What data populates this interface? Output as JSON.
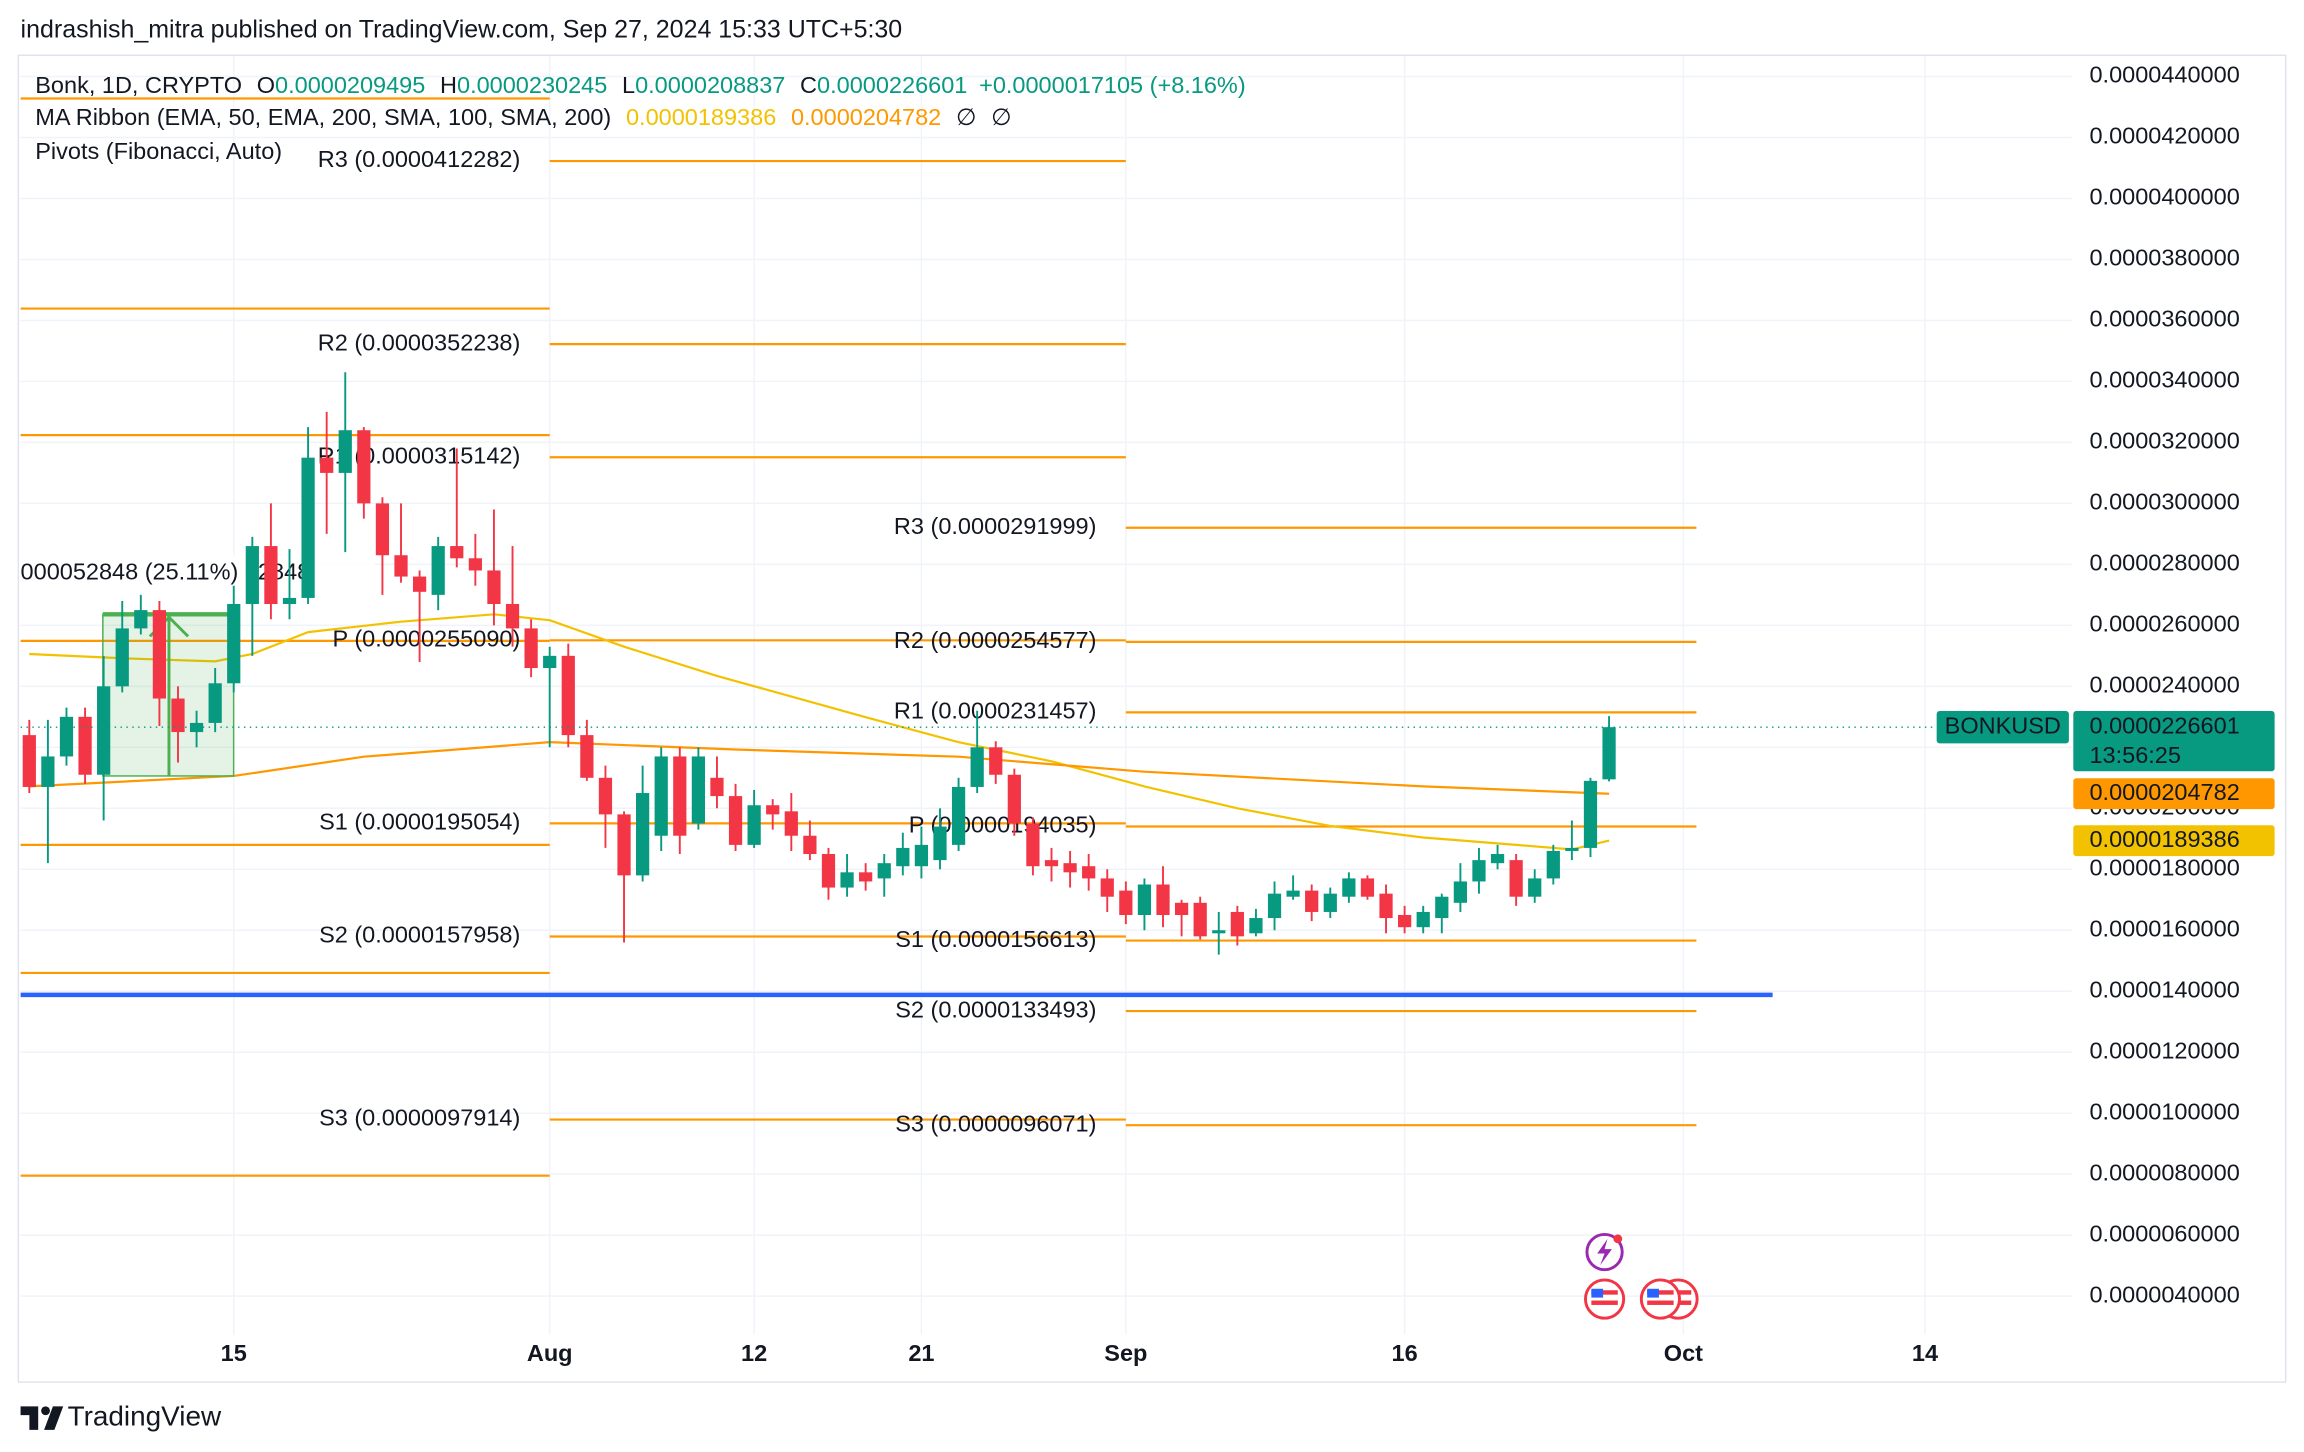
{
  "header": {
    "byline": "indrashish_mitra published on TradingView.com, Sep 27, 2024 15:33 UTC+5:30",
    "brand": "TradingView"
  },
  "chart_data": {
    "type": "candlestick",
    "symbol": "Bonk, 1D, CRYPTO",
    "ohlc_letters": [
      "O",
      "H",
      "L",
      "C"
    ],
    "change": "+0.0000017105 (+8.16%)",
    "ticker": "BONKUSD",
    "countdown": "13:56:25",
    "up_color": "#089981",
    "down_color": "#f23645",
    "open": [
      2.24e-05,
      2.07e-05,
      2.17e-05,
      2.3e-05,
      2.11e-05,
      2.4e-05,
      2.59e-05,
      2.65e-05,
      2.36e-05,
      2.25e-05,
      2.28e-05,
      2.41e-05,
      2.67e-05,
      2.86e-05,
      2.67e-05,
      2.69e-05,
      3.15e-05,
      3.1e-05,
      3.24e-05,
      3e-05,
      2.83e-05,
      2.76e-05,
      2.7e-05,
      2.86e-05,
      2.82e-05,
      2.78e-05,
      2.67e-05,
      2.59e-05,
      2.46e-05,
      2.5e-05,
      2.24e-05,
      2.1e-05,
      1.98e-05,
      1.78e-05,
      1.91e-05,
      2.17e-05,
      1.95e-05,
      2.1e-05,
      2.04e-05,
      1.88e-05,
      2.01e-05,
      1.99e-05,
      1.91e-05,
      1.85e-05,
      1.74e-05,
      1.79e-05,
      1.77e-05,
      1.81e-05,
      1.81e-05,
      1.83e-05,
      1.88e-05,
      2.07e-05,
      2.2e-05,
      2.11e-05,
      1.95e-05,
      1.83e-05,
      1.82e-05,
      1.81e-05,
      1.77e-05,
      1.73e-05,
      1.65e-05,
      1.75e-05,
      1.69e-05,
      1.69e-05,
      1.59e-05,
      1.66e-05,
      1.59e-05,
      1.64e-05,
      1.71e-05,
      1.73e-05,
      1.66e-05,
      1.71e-05,
      1.77e-05,
      1.72e-05,
      1.65e-05,
      1.61e-05,
      1.64e-05,
      1.69e-05,
      1.76e-05,
      1.82e-05,
      1.83e-05,
      1.71e-05,
      1.77e-05,
      1.86e-05,
      1.87e-05,
      2.09495e-05
    ],
    "high": [
      2.29e-05,
      2.29e-05,
      2.33e-05,
      2.33e-05,
      2.5e-05,
      2.68e-05,
      2.7e-05,
      2.68e-05,
      2.4e-05,
      2.32e-05,
      2.46e-05,
      2.73e-05,
      2.89e-05,
      3e-05,
      2.85e-05,
      3.25e-05,
      3.3e-05,
      3.43e-05,
      3.25e-05,
      3.02e-05,
      3e-05,
      2.78e-05,
      2.89e-05,
      3.18e-05,
      2.9e-05,
      2.98e-05,
      2.86e-05,
      2.62e-05,
      2.53e-05,
      2.54e-05,
      2.29e-05,
      2.14e-05,
      1.99e-05,
      2.14e-05,
      2.2e-05,
      2.2e-05,
      2.2e-05,
      2.17e-05,
      2.08e-05,
      2.06e-05,
      2.03e-05,
      2.05e-05,
      1.96e-05,
      1.87e-05,
      1.85e-05,
      1.82e-05,
      1.85e-05,
      1.92e-05,
      1.94e-05,
      2e-05,
      2.1e-05,
      2.32e-05,
      2.22e-05,
      2.13e-05,
      1.97e-05,
      1.87e-05,
      1.86e-05,
      1.85e-05,
      1.8e-05,
      1.76e-05,
      1.77e-05,
      1.81e-05,
      1.7e-05,
      1.71e-05,
      1.66e-05,
      1.68e-05,
      1.67e-05,
      1.76e-05,
      1.78e-05,
      1.75e-05,
      1.74e-05,
      1.79e-05,
      1.78e-05,
      1.75e-05,
      1.68e-05,
      1.68e-05,
      1.72e-05,
      1.82e-05,
      1.87e-05,
      1.88e-05,
      1.85e-05,
      1.8e-05,
      1.88e-05,
      1.96e-05,
      2.1e-05,
      2.30245e-05
    ],
    "low": [
      2.05e-05,
      1.82e-05,
      2.14e-05,
      2.08e-05,
      1.96e-05,
      2.38e-05,
      2.57e-05,
      2.27e-05,
      2.15e-05,
      2.2e-05,
      2.25e-05,
      2.38e-05,
      2.5e-05,
      2.62e-05,
      2.62e-05,
      2.67e-05,
      2.9e-05,
      2.84e-05,
      2.95e-05,
      2.7e-05,
      2.74e-05,
      2.48e-05,
      2.65e-05,
      2.79e-05,
      2.73e-05,
      2.6e-05,
      2.53e-05,
      2.43e-05,
      2.2e-05,
      2.2e-05,
      2.09e-05,
      1.87e-05,
      1.56e-05,
      1.76e-05,
      1.86e-05,
      1.85e-05,
      1.93e-05,
      2e-05,
      1.86e-05,
      1.87e-05,
      1.93e-05,
      1.86e-05,
      1.83e-05,
      1.7e-05,
      1.71e-05,
      1.73e-05,
      1.71e-05,
      1.78e-05,
      1.77e-05,
      1.8e-05,
      1.86e-05,
      2.05e-05,
      2.08e-05,
      1.91e-05,
      1.78e-05,
      1.76e-05,
      1.74e-05,
      1.73e-05,
      1.66e-05,
      1.62e-05,
      1.6e-05,
      1.61e-05,
      1.58e-05,
      1.57e-05,
      1.52e-05,
      1.55e-05,
      1.58e-05,
      1.6e-05,
      1.7e-05,
      1.63e-05,
      1.64e-05,
      1.69e-05,
      1.7e-05,
      1.59e-05,
      1.59e-05,
      1.59e-05,
      1.59e-05,
      1.66e-05,
      1.72e-05,
      1.8e-05,
      1.68e-05,
      1.69e-05,
      1.75e-05,
      1.83e-05,
      1.84e-05,
      2.08837e-05
    ],
    "close": [
      2.07e-05,
      2.17e-05,
      2.3e-05,
      2.11e-05,
      2.4e-05,
      2.59e-05,
      2.65e-05,
      2.36e-05,
      2.25e-05,
      2.28e-05,
      2.41e-05,
      2.67e-05,
      2.86e-05,
      2.67e-05,
      2.69e-05,
      3.15e-05,
      3.1e-05,
      3.24e-05,
      3e-05,
      2.83e-05,
      2.76e-05,
      2.71e-05,
      2.86e-05,
      2.82e-05,
      2.78e-05,
      2.67e-05,
      2.59e-05,
      2.46e-05,
      2.5e-05,
      2.24e-05,
      2.1e-05,
      1.98e-05,
      1.78e-05,
      2.05e-05,
      2.17e-05,
      1.91e-05,
      2.17e-05,
      2.04e-05,
      1.88e-05,
      2.01e-05,
      1.98e-05,
      1.91e-05,
      1.85e-05,
      1.74e-05,
      1.79e-05,
      1.76e-05,
      1.82e-05,
      1.87e-05,
      1.88e-05,
      1.94e-05,
      2.07e-05,
      2.2e-05,
      2.11e-05,
      1.95e-05,
      1.81e-05,
      1.81e-05,
      1.79e-05,
      1.77e-05,
      1.71e-05,
      1.65e-05,
      1.75e-05,
      1.65e-05,
      1.65e-05,
      1.58e-05,
      1.6e-05,
      1.58e-05,
      1.64e-05,
      1.72e-05,
      1.73e-05,
      1.66e-05,
      1.72e-05,
      1.77e-05,
      1.71e-05,
      1.64e-05,
      1.61e-05,
      1.66e-05,
      1.71e-05,
      1.76e-05,
      1.83e-05,
      1.85e-05,
      1.71e-05,
      1.77e-05,
      1.86e-05,
      1.87e-05,
      2.09e-05,
      2.26601e-05
    ],
    "ribbon": {
      "title": "MA Ribbon (EMA, 50, EMA, 200, SMA, 100, SMA, 200)",
      "series": [
        {
          "color": "#f2c200",
          "x": [
            0,
            5,
            10,
            12,
            15,
            20,
            25,
            28,
            32,
            37,
            45,
            50,
            55,
            60,
            65,
            70,
            75,
            80,
            83,
            85
          ],
          "values": [
            2.506e-05,
            2.492e-05,
            2.482e-05,
            2.506e-05,
            2.578e-05,
            2.612e-05,
            2.636e-05,
            2.617e-05,
            2.53e-05,
            2.434e-05,
            2.299e-05,
            2.217e-05,
            2.154e-05,
            2.072e-05,
            2e-05,
            1.942e-05,
            1.904e-05,
            1.88e-05,
            1.865e-05,
            1.89386e-05
          ]
        },
        {
          "color": "#ff9800",
          "x": [
            0,
            11,
            18,
            28,
            38,
            50,
            60,
            75,
            85
          ],
          "values": [
            2.072e-05,
            2.106e-05,
            2.169e-05,
            2.217e-05,
            2.193e-05,
            2.169e-05,
            2.12e-05,
            2.072e-05,
            2.04782e-05
          ]
        }
      ],
      "na": [
        "∅",
        "∅"
      ]
    },
    "pivots": {
      "title": "Pivots (Fibonacci, Auto)",
      "color": "#ff9800",
      "periods": [
        {
          "xrange": [
            -0.47,
            28
          ],
          "levels": [
            4.328e-05,
            3.639e-05,
            3.224e-05,
            2.549e-05,
            1.88e-05,
            1.46e-05,
            7.95e-06
          ]
        },
        {
          "xrange": [
            28,
            59
          ],
          "levels": [
            {
              "value": 4.12282e-05,
              "label": "R3 (0.0000412282)"
            },
            {
              "value": 3.52238e-05,
              "label": "R2 (0.0000352238)"
            },
            {
              "value": 3.15142e-05,
              "label": "R1 (0.0000315142)"
            },
            {
              "value": 2.5509e-05,
              "label": "P (0.0000255090)"
            },
            {
              "value": 1.95054e-05,
              "label": "S1 (0.0000195054)"
            },
            {
              "value": 1.57958e-05,
              "label": "S2 (0.0000157958)"
            },
            {
              "value": 9.7914e-06,
              "label": "S3 (0.0000097914)"
            }
          ]
        },
        {
          "xrange": [
            59,
            89.7
          ],
          "levels": [
            {
              "value": 2.91999e-05,
              "label": "R3 (0.0000291999)"
            },
            {
              "value": 2.54577e-05,
              "label": "R2 (0.0000254577)"
            },
            {
              "value": 2.31457e-05,
              "label": "R1 (0.0000231457)"
            },
            {
              "value": 1.94035e-05,
              "label": "P (0.0000194035)"
            },
            {
              "value": 1.56613e-05,
              "label": "S1 (0.0000156613)"
            },
            {
              "value": 1.33493e-05,
              "label": "S2 (0.0000133493)"
            },
            {
              "value": 9.6071e-06,
              "label": "S3 (0.0000096071)"
            }
          ]
        }
      ]
    },
    "support_line": {
      "value": 1.388e-05,
      "xrange": [
        -0.47,
        93.8
      ],
      "color": "#2962ff"
    },
    "measure": {
      "label": "000052848 (25.11%) 52848",
      "color": "#4caf50"
    },
    "xlim": [
      -0.47,
      109.9
    ],
    "xticks": [
      {
        "value": 11,
        "label": "15"
      },
      {
        "value": 28,
        "label": "Aug"
      },
      {
        "value": 39,
        "label": "12"
      },
      {
        "value": 48,
        "label": "21"
      },
      {
        "value": 59,
        "label": "Sep"
      },
      {
        "value": 74,
        "label": "16"
      },
      {
        "value": 89,
        "label": "Oct"
      },
      {
        "value": 102,
        "label": "14"
      }
    ],
    "ylim": [
      2.747e-06,
      4.4675e-05
    ],
    "yticks": [
      {
        "value": 4e-06,
        "label": "0.0000040000"
      },
      {
        "value": 6e-06,
        "label": "0.0000060000"
      },
      {
        "value": 8e-06,
        "label": "0.0000080000"
      },
      {
        "value": 1e-05,
        "label": "0.0000100000"
      },
      {
        "value": 1.2e-05,
        "label": "0.0000120000"
      },
      {
        "value": 1.4e-05,
        "label": "0.0000140000"
      },
      {
        "value": 1.6e-05,
        "label": "0.0000160000"
      },
      {
        "value": 1.8e-05,
        "label": "0.0000180000"
      },
      {
        "value": 2e-05,
        "label": "0.0000200000"
      },
      {
        "value": 2.2e-05,
        "label": "0.0000220000"
      },
      {
        "value": 2.4e-05,
        "label": "0.0000240000"
      },
      {
        "value": 2.6e-05,
        "label": "0.0000260000"
      },
      {
        "value": 2.8e-05,
        "label": "0.0000280000"
      },
      {
        "value": 3e-05,
        "label": "0.0000300000"
      },
      {
        "value": 3.2e-05,
        "label": "0.0000320000"
      },
      {
        "value": 3.4e-05,
        "label": "0.0000340000"
      },
      {
        "value": 3.6e-05,
        "label": "0.0000360000"
      },
      {
        "value": 3.8e-05,
        "label": "0.0000380000"
      },
      {
        "value": 4e-05,
        "label": "0.0000400000"
      },
      {
        "value": 4.2e-05,
        "label": "0.0000420000"
      },
      {
        "value": 4.4e-05,
        "label": "0.0000440000"
      }
    ],
    "grid": true
  }
}
